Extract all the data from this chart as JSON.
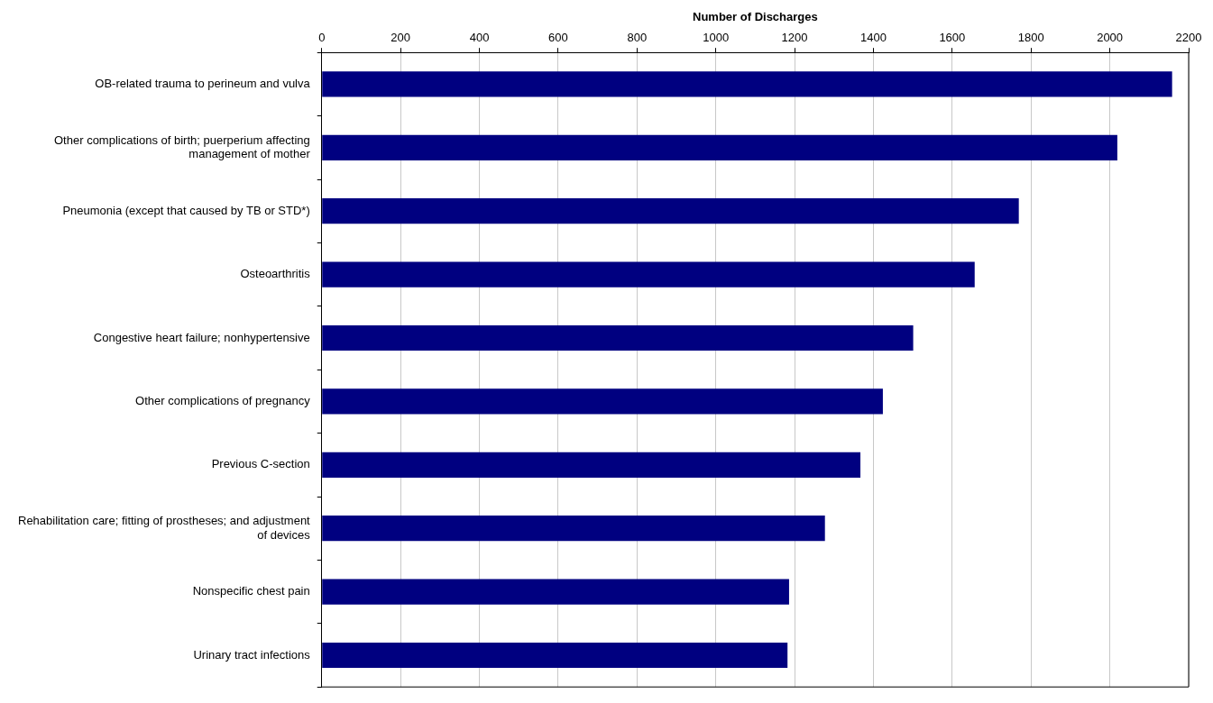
{
  "chart_data": {
    "type": "bar",
    "orientation": "horizontal",
    "xlabel": "Number of Discharges",
    "categories": [
      "OB-related trauma to perineum and vulva",
      "Other complications of birth; puerperium affecting management of mother",
      "Pneumonia (except that caused by TB or STD*)",
      "Osteoarthritis",
      "Congestive heart failure; nonhypertensive",
      "Other complications of pregnancy",
      "Previous C-section",
      "Rehabilitation care; fitting of prostheses; and adjustment of devices",
      "Nonspecific chest pain",
      "Urinary tract infections"
    ],
    "values": [
      2158,
      2019,
      1769,
      1657,
      1501,
      1424,
      1367,
      1277,
      1186,
      1182
    ],
    "color": "#000080",
    "xlim": [
      0,
      2200
    ],
    "xticks": [
      0,
      200,
      400,
      600,
      800,
      1000,
      1200,
      1400,
      1600,
      1800,
      2000,
      2200
    ],
    "grid": "x",
    "legend": false
  }
}
